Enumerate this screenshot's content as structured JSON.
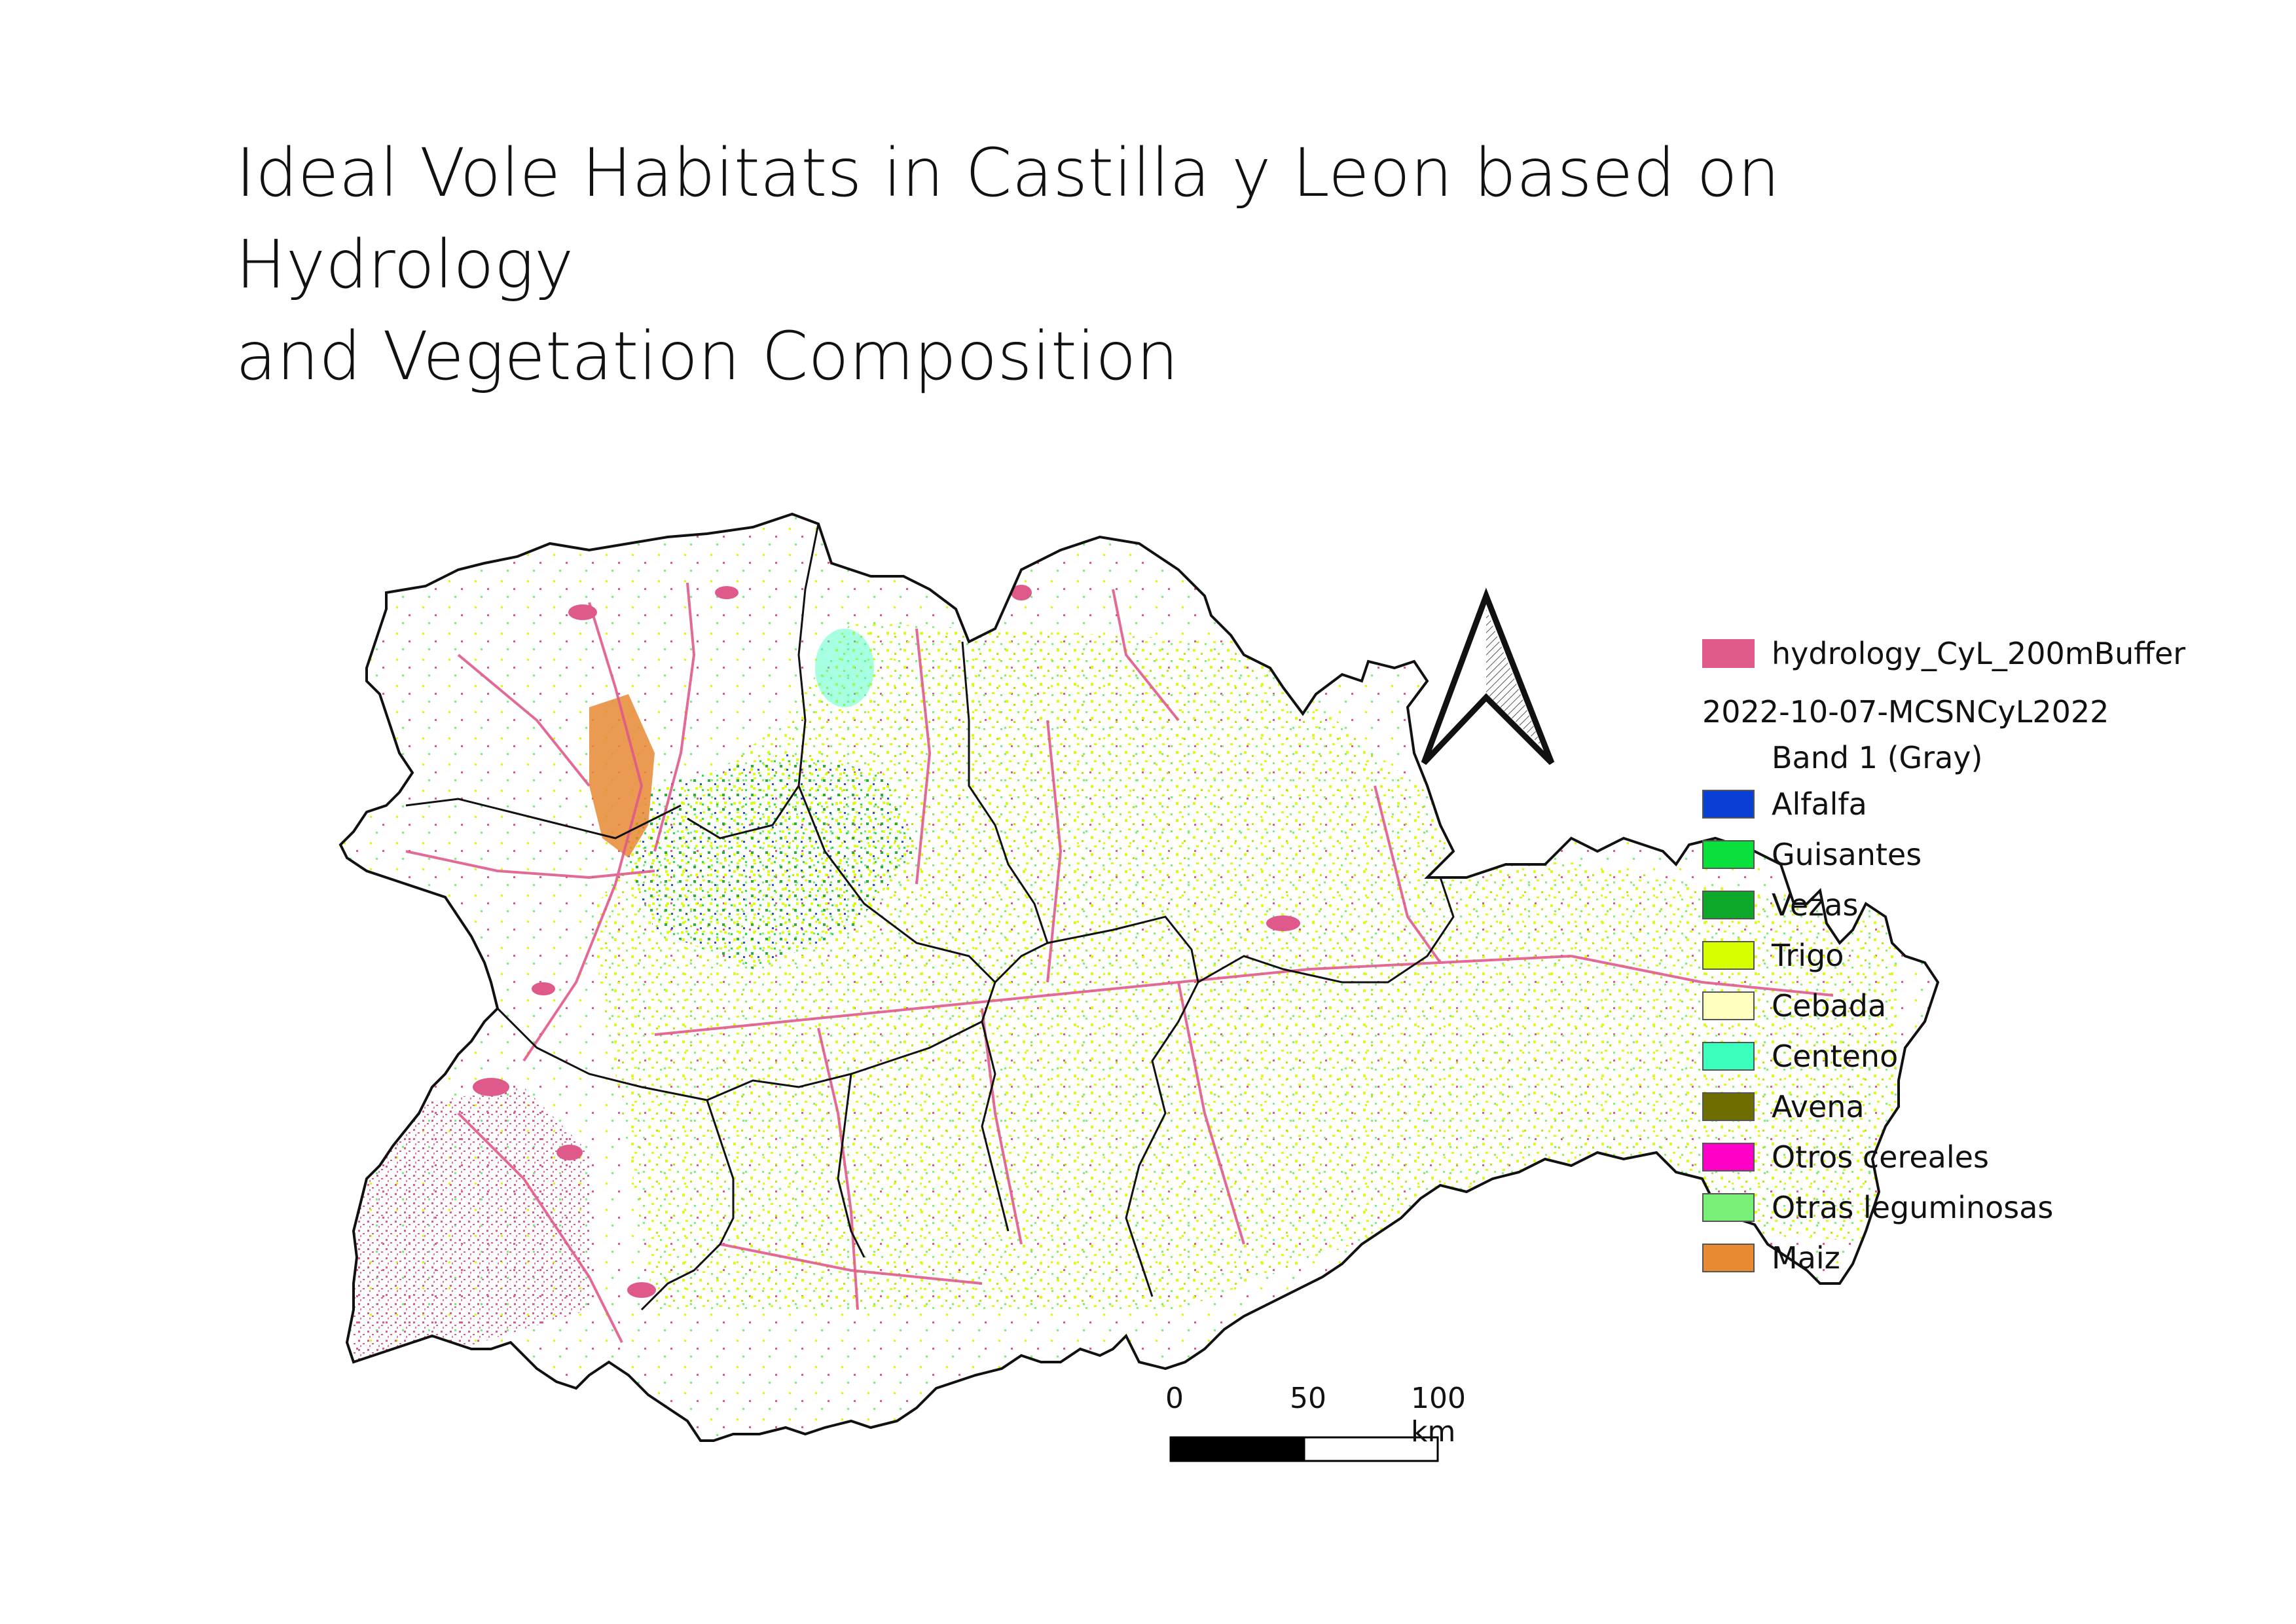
{
  "title_line1": "Ideal Vole Habitats in Castilla y Leon based on Hydrology",
  "title_line2": "and Vegetation Composition",
  "legend": {
    "hydrology": {
      "label": "hydrology_CyL_200mBuffer",
      "color": "#e0598b"
    },
    "raster_name": "2022-10-07-MCSNCyL2022",
    "band": "Band 1 (Gray)",
    "classes": [
      {
        "label": "Alfalfa",
        "color": "#0a3fd6"
      },
      {
        "label": "Guisantes",
        "color": "#0ae03c"
      },
      {
        "label": "Vezas",
        "color": "#0ea82a"
      },
      {
        "label": "Trigo",
        "color": "#d8ff00"
      },
      {
        "label": "Cebada",
        "color": "#ffffc0"
      },
      {
        "label": "Centeno",
        "color": "#3cffbe"
      },
      {
        "label": "Avena",
        "color": "#6e6e00"
      },
      {
        "label": "Otros cereales",
        "color": "#ff00c8"
      },
      {
        "label": "Otras leguminosas",
        "color": "#78f078"
      },
      {
        "label": "Maiz",
        "color": "#e88a32"
      }
    ]
  },
  "scalebar": {
    "label_0": "0",
    "label_50": "50",
    "label_100": "100 km"
  },
  "north_arrow": {
    "icon": "north-arrow-icon"
  }
}
